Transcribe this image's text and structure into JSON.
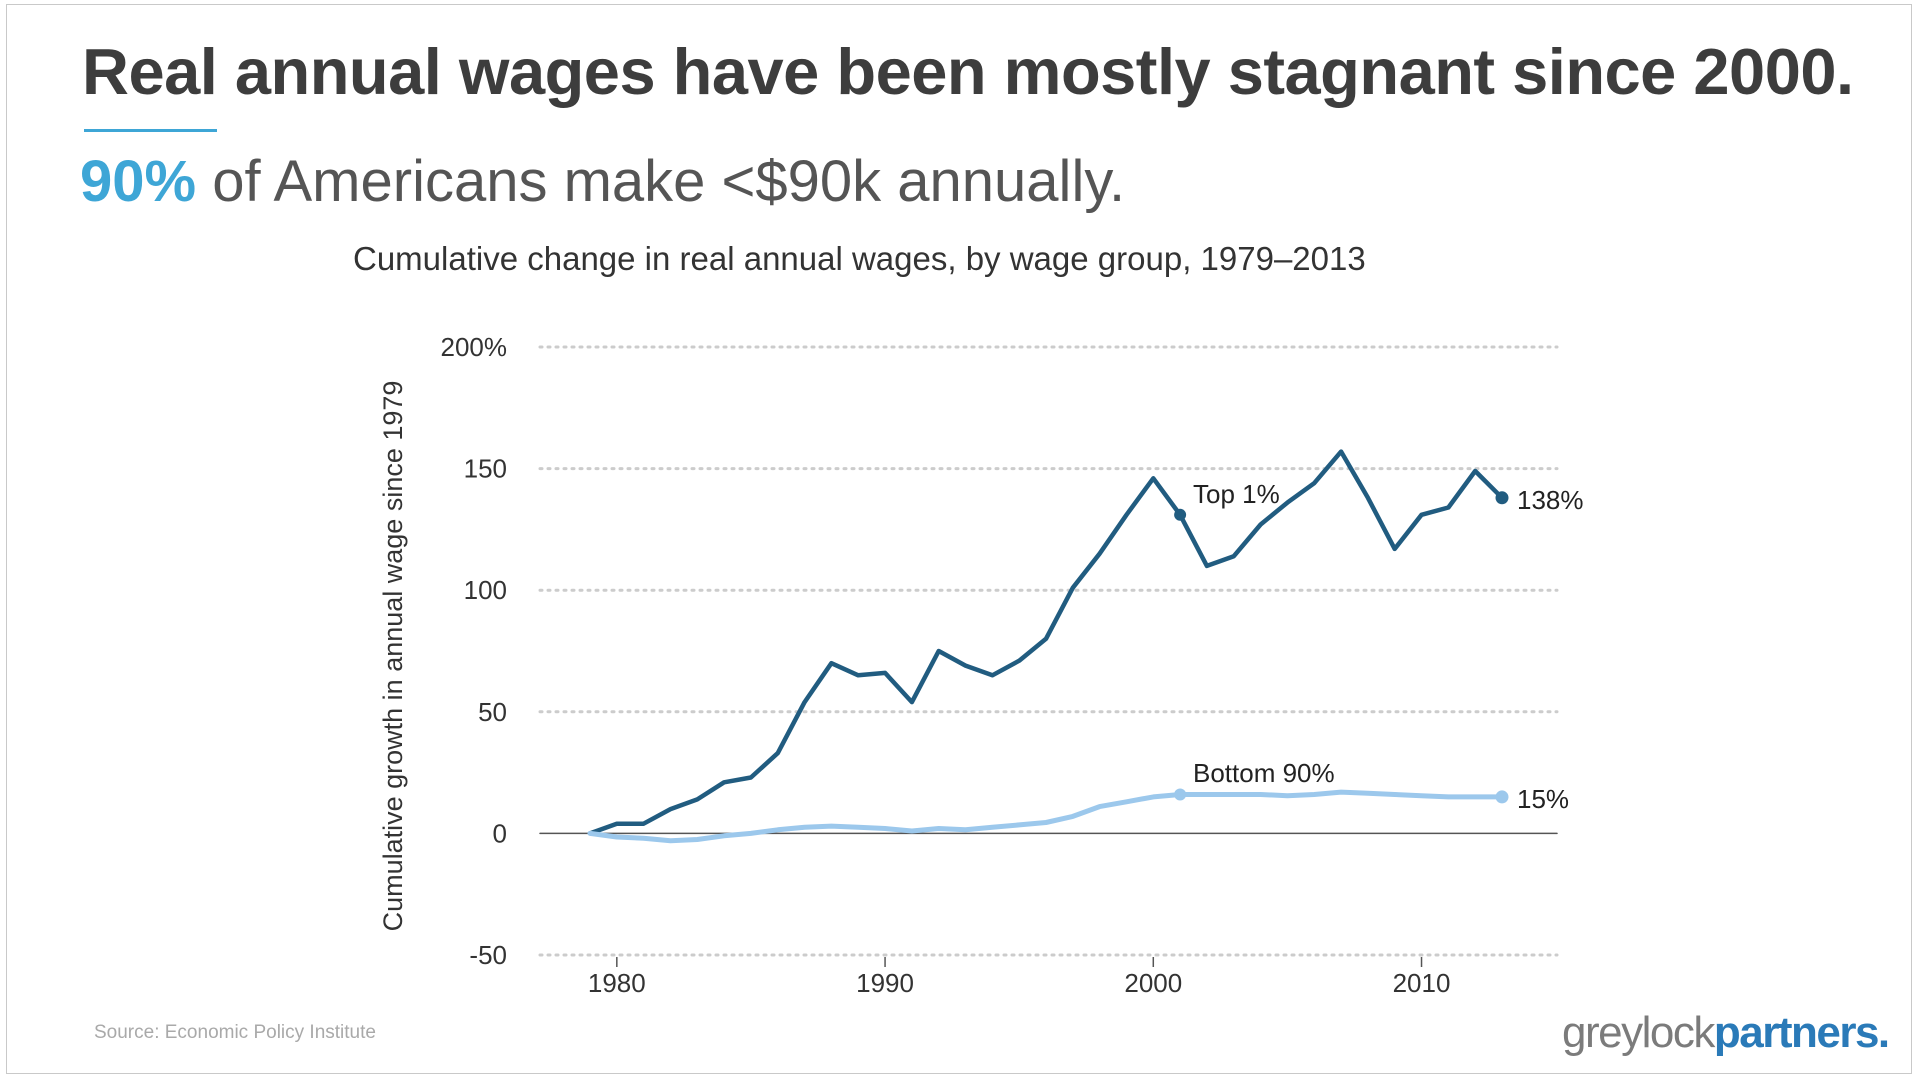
{
  "slide": {
    "headline": "Real annual wages have been mostly stagnant since 2000.",
    "subhead_accent": "90%",
    "subhead_rest": " of Americans make <$90k annually.",
    "source": "Source: Economic Policy Institute",
    "logo_grey": "greylock",
    "logo_blue": "partners."
  },
  "colors": {
    "accent": "#3ea6d6",
    "top_series": "#215c80",
    "bottom_series": "#9cc8ec",
    "gridline": "#cccccc",
    "zero_line": "#555555"
  },
  "chart_data": {
    "type": "line",
    "title": "Cumulative change in real annual wages, by wage group, 1979–2013",
    "ylabel": "Cumulative growth in annual wage since 1979",
    "xlabel": "",
    "ylim": [
      -50,
      200
    ],
    "xlim": [
      1977,
      2015
    ],
    "yticks": [
      -50,
      0,
      50,
      100,
      150,
      200
    ],
    "ytick_labels": [
      "-50",
      "0",
      "50",
      "100",
      "150",
      "200%"
    ],
    "xticks": [
      1980,
      1990,
      2000,
      2010
    ],
    "xtick_labels": [
      "1980",
      "1990",
      "2000",
      "2010"
    ],
    "grid": "horizontal-dotted",
    "series": [
      {
        "name": "Top 1%",
        "end_label": "138%",
        "label_year": 2001,
        "x": [
          1979,
          1980,
          1981,
          1982,
          1983,
          1984,
          1985,
          1986,
          1987,
          1988,
          1989,
          1990,
          1991,
          1992,
          1993,
          1994,
          1995,
          1996,
          1997,
          1998,
          1999,
          2000,
          2001,
          2002,
          2003,
          2004,
          2005,
          2006,
          2007,
          2008,
          2009,
          2010,
          2011,
          2012,
          2013
        ],
        "y": [
          0,
          4,
          4,
          10,
          14,
          21,
          23,
          33,
          54,
          70,
          65,
          66,
          54,
          75,
          69,
          65,
          71,
          80,
          101,
          115,
          131,
          146,
          131,
          110,
          114,
          127,
          136,
          144,
          157,
          138,
          117,
          131,
          134,
          149,
          138
        ]
      },
      {
        "name": "Bottom 90%",
        "end_label": "15%",
        "label_year": 2001,
        "x": [
          1979,
          1980,
          1981,
          1982,
          1983,
          1984,
          1985,
          1986,
          1987,
          1988,
          1989,
          1990,
          1991,
          1992,
          1993,
          1994,
          1995,
          1996,
          1997,
          1998,
          1999,
          2000,
          2001,
          2002,
          2003,
          2004,
          2005,
          2006,
          2007,
          2008,
          2009,
          2010,
          2011,
          2012,
          2013
        ],
        "y": [
          0,
          -1.5,
          -2,
          -3,
          -2.5,
          -1,
          0,
          1.5,
          2.5,
          3,
          2.5,
          2,
          1,
          2,
          1.5,
          2.5,
          3.5,
          4.5,
          7,
          11,
          13,
          15,
          16,
          16,
          16,
          16,
          15.5,
          16,
          17,
          16.5,
          16,
          15.5,
          15,
          15,
          15
        ]
      }
    ]
  }
}
